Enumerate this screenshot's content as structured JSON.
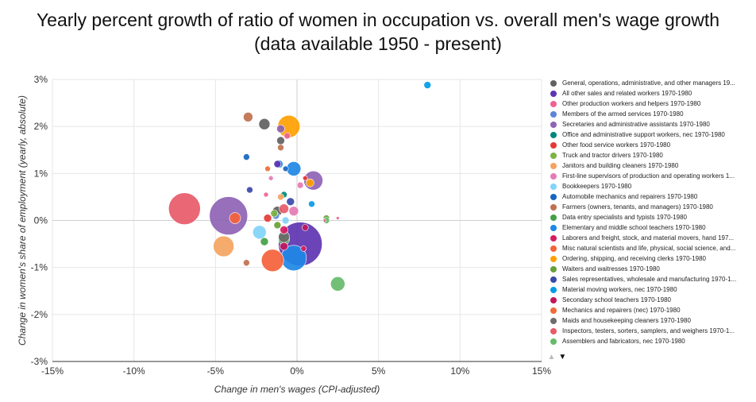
{
  "title": {
    "line1": "Yearly percent growth of ratio of women in occupation vs. overall men's wage growth",
    "line2": "(data available 1950 - present)"
  },
  "legend_pager": {
    "up_icon": "triangle-up-icon",
    "down_icon": "triangle-down-icon"
  },
  "chart_data": {
    "type": "scatter",
    "bubble": true,
    "title": "Yearly percent growth of ratio of women in occupation vs. overall men's wage growth (data available 1950 - present)",
    "xlabel": "Change in men's wages (CPI-adjusted)",
    "ylabel": "Change in women's share of employment (yearly, absolute)",
    "xlim": [
      -15,
      15
    ],
    "ylim": [
      -3,
      3
    ],
    "x_ticks": [
      "-15%",
      "-10%",
      "-5%",
      "0%",
      "5%",
      "10%",
      "15%"
    ],
    "y_ticks": [
      "3%",
      "2%",
      "1%",
      "0%",
      "-1%",
      "-2%",
      "-3%"
    ],
    "grid": true,
    "legend_position": "right",
    "series": [
      {
        "name": "General, operations, administrative, and other managers 19...",
        "color": "#616161",
        "points": [
          {
            "x": -2.0,
            "y": 2.05,
            "size": 14
          },
          {
            "x": -1.0,
            "y": 1.7,
            "size": 10
          },
          {
            "x": -1.2,
            "y": 0.2,
            "size": 12
          }
        ]
      },
      {
        "name": "All other sales and related workers 1970-1980",
        "color": "#5e35b1",
        "points": [
          {
            "x": 0.2,
            "y": -0.5,
            "size": 55
          },
          {
            "x": -1.2,
            "y": 1.2,
            "size": 9
          }
        ]
      },
      {
        "name": "Other production workers and helpers 1970-1980",
        "color": "#f06292",
        "points": [
          {
            "x": -0.6,
            "y": 1.8,
            "size": 8
          },
          {
            "x": -1.9,
            "y": 0.55,
            "size": 6
          },
          {
            "x": 1.7,
            "y": 0.0,
            "size": 4
          },
          {
            "x": 2.5,
            "y": 0.05,
            "size": 4
          }
        ]
      },
      {
        "name": "Members of the armed services 1970-1980",
        "color": "#5c85d6",
        "points": [
          {
            "x": -1.3,
            "y": 0.1,
            "size": 9
          }
        ]
      },
      {
        "name": "Secretaries and administrative assistants 1970-1980",
        "color": "#8e63b5",
        "points": [
          {
            "x": -4.2,
            "y": 0.1,
            "size": 48
          },
          {
            "x": 1.0,
            "y": 0.85,
            "size": 24
          },
          {
            "x": -1.0,
            "y": 1.95,
            "size": 10
          }
        ]
      },
      {
        "name": "Office and administrative support workers, nec 1970-1980",
        "color": "#00897b",
        "points": [
          {
            "x": -0.8,
            "y": 0.55,
            "size": 8
          }
        ]
      },
      {
        "name": "Other food service workers 1970-1980",
        "color": "#e53935",
        "points": [
          {
            "x": -1.8,
            "y": 0.05,
            "size": 10
          },
          {
            "x": 0.5,
            "y": 0.9,
            "size": 6
          }
        ]
      },
      {
        "name": "Truck and tractor drivers 1970-1980",
        "color": "#7cb342",
        "points": [
          {
            "x": -1.4,
            "y": 0.15,
            "size": 9
          }
        ]
      },
      {
        "name": "Janitors and building cleaners 1970-1980",
        "color": "#f4a460",
        "points": [
          {
            "x": -4.5,
            "y": -0.55,
            "size": 26
          },
          {
            "x": -1.0,
            "y": 0.5,
            "size": 8
          }
        ]
      },
      {
        "name": "First-line supervisors of production and operating workers 1...",
        "color": "#e57bb5",
        "points": [
          {
            "x": -0.2,
            "y": 0.2,
            "size": 12
          },
          {
            "x": 0.2,
            "y": 0.75,
            "size": 8
          },
          {
            "x": -1.6,
            "y": 0.9,
            "size": 6
          }
        ]
      },
      {
        "name": "Bookkeepers 1970-1980",
        "color": "#81d4fa",
        "points": [
          {
            "x": -2.3,
            "y": -0.25,
            "size": 17
          },
          {
            "x": -0.7,
            "y": 0.0,
            "size": 9
          }
        ]
      },
      {
        "name": "Automobile mechanics and repairers 1970-1980",
        "color": "#1565c0",
        "points": [
          {
            "x": -3.1,
            "y": 1.35,
            "size": 8
          },
          {
            "x": -0.7,
            "y": 1.1,
            "size": 7
          }
        ]
      },
      {
        "name": "Farmers (owners, tenants, and managers) 1970-1980",
        "color": "#c0714f",
        "points": [
          {
            "x": -3.0,
            "y": 2.2,
            "size": 12
          },
          {
            "x": -3.1,
            "y": -0.9,
            "size": 8
          },
          {
            "x": -1.0,
            "y": 1.55,
            "size": 8
          }
        ]
      },
      {
        "name": "Data entry specialists and typists 1970-1980",
        "color": "#43a047",
        "points": [
          {
            "x": -0.8,
            "y": -0.4,
            "size": 14
          },
          {
            "x": -2.0,
            "y": -0.45,
            "size": 10
          }
        ]
      },
      {
        "name": "Elementary and middle school teachers 1970-1980",
        "color": "#1e88e5",
        "points": [
          {
            "x": -0.2,
            "y": -0.8,
            "size": 32
          },
          {
            "x": -1.1,
            "y": 1.2,
            "size": 10
          },
          {
            "x": -0.2,
            "y": 1.1,
            "size": 18
          }
        ]
      },
      {
        "name": "Laborers and freight, stock, and material movers, hand 197...",
        "color": "#d81b60",
        "points": [
          {
            "x": -0.8,
            "y": -0.2,
            "size": 10
          },
          {
            "x": 0.4,
            "y": -0.6,
            "size": 7
          }
        ]
      },
      {
        "name": "Misc natural scientists and life, physical, social science, and...",
        "color": "#f4623a",
        "points": [
          {
            "x": -1.5,
            "y": -0.85,
            "size": 28
          },
          {
            "x": -3.8,
            "y": 0.05,
            "size": 14
          }
        ]
      },
      {
        "name": "Ordering, shipping, and receiving clerks 1970-1980",
        "color": "#ffa000",
        "points": [
          {
            "x": -0.5,
            "y": 2.0,
            "size": 28
          },
          {
            "x": 0.8,
            "y": 0.8,
            "size": 10
          }
        ]
      },
      {
        "name": "Waiters and waitresses 1970-1980",
        "color": "#689f38",
        "points": [
          {
            "x": -1.2,
            "y": -0.1,
            "size": 9
          },
          {
            "x": 1.8,
            "y": 0.05,
            "size": 8
          }
        ]
      },
      {
        "name": "Sales representatives, wholesale and manufacturing 1970-1...",
        "color": "#3949ab",
        "points": [
          {
            "x": -2.9,
            "y": 0.65,
            "size": 8
          },
          {
            "x": -0.4,
            "y": 0.4,
            "size": 10
          }
        ]
      },
      {
        "name": "Material moving workers, nec 1970-1980",
        "color": "#039be5",
        "points": [
          {
            "x": 8.0,
            "y": 2.88,
            "size": 9
          },
          {
            "x": 0.9,
            "y": 0.35,
            "size": 8
          }
        ]
      },
      {
        "name": "Secondary school teachers 1970-1980",
        "color": "#c2185b",
        "points": [
          {
            "x": -0.8,
            "y": -0.55,
            "size": 10
          },
          {
            "x": 0.5,
            "y": -0.15,
            "size": 8
          }
        ]
      },
      {
        "name": "Mechanics and repairers (nec) 1970-1980",
        "color": "#ef6c3a",
        "points": [
          {
            "x": -1.8,
            "y": 1.1,
            "size": 7
          }
        ]
      },
      {
        "name": "Maids and housekeeping cleaners 1970-1980",
        "color": "#6d6d6d",
        "points": [
          {
            "x": -0.8,
            "y": -0.35,
            "size": 14
          }
        ]
      },
      {
        "name": "Inspectors, testers, sorters, samplers, and weighers 1970-1...",
        "color": "#e85a6a",
        "points": [
          {
            "x": -6.9,
            "y": 0.25,
            "size": 40
          },
          {
            "x": -0.8,
            "y": 0.25,
            "size": 12
          }
        ]
      },
      {
        "name": "Assemblers and fabricators, nec 1970-1980",
        "color": "#66bb6a",
        "points": [
          {
            "x": 2.5,
            "y": -1.35,
            "size": 18
          },
          {
            "x": 1.8,
            "y": 0.0,
            "size": 8
          }
        ]
      }
    ]
  }
}
